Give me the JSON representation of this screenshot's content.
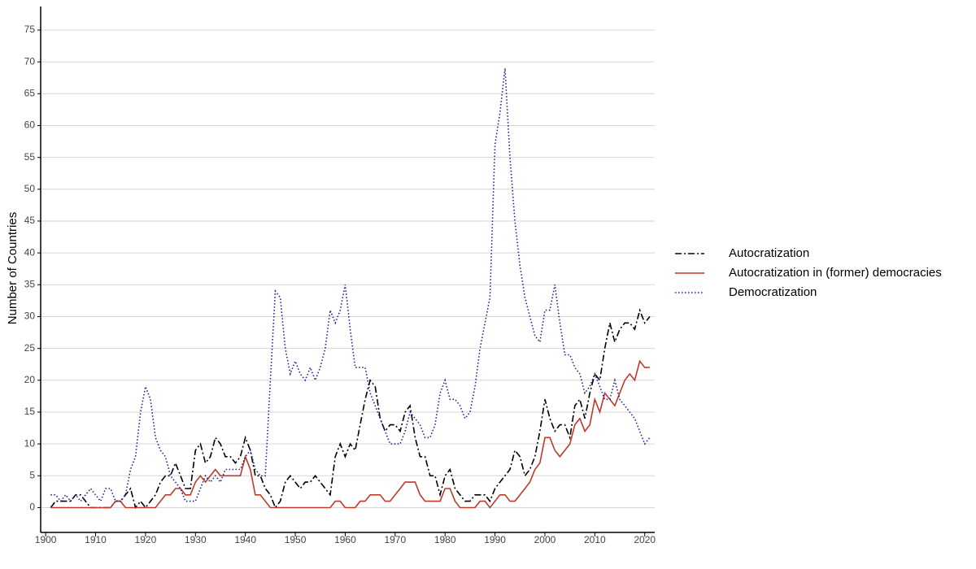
{
  "chart_data": {
    "type": "line",
    "y_label": "Number of Countries",
    "x": [
      1901,
      1902,
      1903,
      1904,
      1905,
      1906,
      1907,
      1908,
      1909,
      1910,
      1911,
      1912,
      1913,
      1914,
      1915,
      1916,
      1917,
      1918,
      1919,
      1920,
      1921,
      1922,
      1923,
      1924,
      1925,
      1926,
      1927,
      1928,
      1929,
      1930,
      1931,
      1932,
      1933,
      1934,
      1935,
      1936,
      1937,
      1938,
      1939,
      1940,
      1941,
      1942,
      1943,
      1944,
      1945,
      1946,
      1947,
      1948,
      1949,
      1950,
      1951,
      1952,
      1953,
      1954,
      1955,
      1956,
      1957,
      1958,
      1959,
      1960,
      1961,
      1962,
      1963,
      1964,
      1965,
      1966,
      1967,
      1968,
      1969,
      1970,
      1971,
      1972,
      1973,
      1974,
      1975,
      1976,
      1977,
      1978,
      1979,
      1980,
      1981,
      1982,
      1983,
      1984,
      1985,
      1986,
      1987,
      1988,
      1989,
      1990,
      1991,
      1992,
      1993,
      1994,
      1995,
      1996,
      1997,
      1998,
      1999,
      2000,
      2001,
      2002,
      2003,
      2004,
      2005,
      2006,
      2007,
      2008,
      2009,
      2010,
      2011,
      2012,
      2013,
      2014,
      2015,
      2016,
      2017,
      2018,
      2019,
      2020,
      2021
    ],
    "series": [
      {
        "name": "Autocratization",
        "color": "#000000",
        "dash": "8 3 2 3",
        "values": [
          0,
          1,
          1,
          1,
          1,
          2,
          2,
          1,
          0,
          0,
          0,
          0,
          0,
          1,
          1,
          2,
          3,
          0,
          1,
          0,
          1,
          2,
          4,
          5,
          5,
          7,
          5,
          3,
          3,
          9,
          10,
          7,
          8,
          11,
          10,
          8,
          8,
          7,
          8,
          11,
          9,
          5,
          5,
          3,
          2,
          0,
          1,
          4,
          5,
          4,
          3,
          4,
          4,
          5,
          4,
          3,
          2,
          8,
          10,
          8,
          10,
          9,
          13,
          17,
          20,
          19,
          14,
          12,
          13,
          13,
          12,
          15,
          16,
          11,
          8,
          8,
          5,
          5,
          2,
          5,
          6,
          3,
          2,
          1,
          1,
          2,
          2,
          2,
          1,
          3,
          4,
          5,
          6,
          9,
          8,
          5,
          6,
          8,
          12,
          17,
          14,
          12,
          13,
          13,
          11,
          16,
          17,
          14,
          18,
          21,
          20,
          25,
          29,
          26,
          28,
          29,
          29,
          28,
          31,
          29,
          30
        ]
      },
      {
        "name": "Autocratization in (former) democracies",
        "color": "#c0392b",
        "dash": "none",
        "values": [
          0,
          0,
          0,
          0,
          0,
          0,
          0,
          0,
          0,
          0,
          0,
          0,
          0,
          1,
          1,
          0,
          0,
          0,
          0,
          0,
          0,
          0,
          1,
          2,
          2,
          3,
          3,
          2,
          2,
          4,
          5,
          4,
          5,
          6,
          5,
          5,
          5,
          5,
          5,
          8,
          6,
          2,
          2,
          1,
          0,
          0,
          0,
          0,
          0,
          0,
          0,
          0,
          0,
          0,
          0,
          0,
          0,
          1,
          1,
          0,
          0,
          0,
          1,
          1,
          2,
          2,
          2,
          1,
          1,
          2,
          3,
          4,
          4,
          4,
          2,
          1,
          1,
          1,
          1,
          3,
          3,
          1,
          0,
          0,
          0,
          0,
          1,
          1,
          0,
          1,
          2,
          2,
          1,
          1,
          2,
          3,
          4,
          6,
          7,
          11,
          11,
          9,
          8,
          9,
          10,
          13,
          14,
          12,
          13,
          17,
          15,
          18,
          17,
          16,
          18,
          20,
          21,
          20,
          23,
          22,
          22
        ]
      },
      {
        "name": "Democratization",
        "color": "#1f1f8f",
        "dash": "1.5 2.5",
        "values": [
          2,
          2,
          1,
          2,
          1,
          2,
          1,
          2,
          3,
          2,
          1,
          3,
          3,
          1,
          1,
          2,
          6,
          8,
          15,
          19,
          17,
          11,
          9,
          8,
          5,
          4,
          3,
          1,
          1,
          1,
          3,
          5,
          4,
          5,
          4,
          6,
          6,
          6,
          6,
          8,
          9,
          6,
          5,
          5,
          20,
          34,
          33,
          25,
          21,
          23,
          21,
          20,
          22,
          20,
          22,
          25,
          31,
          29,
          31,
          35,
          28,
          22,
          22,
          22,
          18,
          16,
          14,
          12,
          10,
          10,
          10,
          12,
          15,
          14,
          13,
          11,
          11,
          13,
          18,
          20,
          17,
          17,
          16,
          14,
          15,
          19,
          25,
          29,
          33,
          57,
          62,
          69,
          55,
          45,
          38,
          33,
          30,
          27,
          26,
          31,
          31,
          35,
          29,
          24,
          24,
          22,
          21,
          18,
          19,
          21,
          19,
          17,
          17,
          20,
          17,
          16,
          15,
          14,
          12,
          10,
          11
        ]
      }
    ],
    "xlim": [
      1899,
      2022
    ],
    "xticks": [
      1900,
      1910,
      1920,
      1930,
      1940,
      1950,
      1960,
      1970,
      1980,
      1990,
      2000,
      2010,
      2020
    ],
    "ylim": [
      -3.9,
      78.7
    ],
    "yticks": [
      0,
      5,
      10,
      15,
      20,
      25,
      30,
      35,
      40,
      45,
      50,
      55,
      60,
      65,
      70,
      75
    ],
    "grid": true
  }
}
